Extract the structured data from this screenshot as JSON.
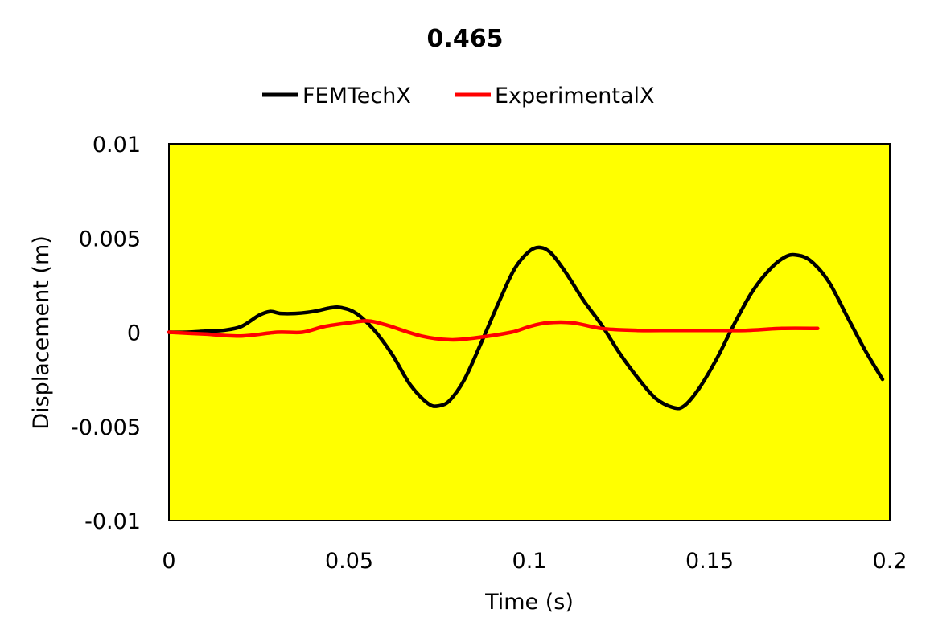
{
  "chart_data": {
    "type": "line",
    "title": "0.465",
    "xlabel": "Time (s)",
    "ylabel": "Displacement (m)",
    "xlim": [
      0,
      0.2
    ],
    "ylim": [
      -0.01,
      0.01
    ],
    "x_ticks": [
      "0",
      "0.05",
      "0.1",
      "0.15",
      "0.2"
    ],
    "y_ticks": [
      "0.01",
      "0.005",
      "0",
      "-0.005",
      "-0.01"
    ],
    "grid": false,
    "legend_position": "top",
    "plot_background": "#ffff00",
    "series": [
      {
        "name": "FEMTechX",
        "color": "#000000",
        "points": [
          [
            0,
            0
          ],
          [
            0.005,
            0
          ],
          [
            0.01,
            5e-05
          ],
          [
            0.015,
            0.0001
          ],
          [
            0.02,
            0.0003
          ],
          [
            0.025,
            0.0009
          ],
          [
            0.028,
            0.0011
          ],
          [
            0.031,
            0.001
          ],
          [
            0.035,
            0.001
          ],
          [
            0.04,
            0.0011
          ],
          [
            0.045,
            0.0013
          ],
          [
            0.048,
            0.0013
          ],
          [
            0.052,
            0.001
          ],
          [
            0.057,
            0.0001
          ],
          [
            0.062,
            -0.0012
          ],
          [
            0.067,
            -0.0028
          ],
          [
            0.072,
            -0.0038
          ],
          [
            0.075,
            -0.0039
          ],
          [
            0.078,
            -0.0036
          ],
          [
            0.082,
            -0.0025
          ],
          [
            0.087,
            -0.0004
          ],
          [
            0.092,
            0.0018
          ],
          [
            0.096,
            0.0034
          ],
          [
            0.1,
            0.0043
          ],
          [
            0.103,
            0.0045
          ],
          [
            0.106,
            0.0042
          ],
          [
            0.11,
            0.0032
          ],
          [
            0.115,
            0.0017
          ],
          [
            0.12,
            0.0004
          ],
          [
            0.125,
            -0.0011
          ],
          [
            0.13,
            -0.0024
          ],
          [
            0.135,
            -0.0035
          ],
          [
            0.14,
            -0.004
          ],
          [
            0.143,
            -0.0039
          ],
          [
            0.147,
            -0.003
          ],
          [
            0.152,
            -0.0014
          ],
          [
            0.157,
            0.0005
          ],
          [
            0.162,
            0.0022
          ],
          [
            0.167,
            0.0034
          ],
          [
            0.171,
            0.004
          ],
          [
            0.174,
            0.0041
          ],
          [
            0.178,
            0.0038
          ],
          [
            0.183,
            0.0027
          ],
          [
            0.188,
            0.0009
          ],
          [
            0.193,
            -0.0009
          ],
          [
            0.198,
            -0.0025
          ]
        ]
      },
      {
        "name": "ExperimentalX",
        "color": "#ff0000",
        "points": [
          [
            0,
            0
          ],
          [
            0.01,
            -0.0001
          ],
          [
            0.02,
            -0.0002
          ],
          [
            0.03,
            0
          ],
          [
            0.037,
            0
          ],
          [
            0.043,
            0.0003
          ],
          [
            0.05,
            0.0005
          ],
          [
            0.055,
            0.0006
          ],
          [
            0.06,
            0.0004
          ],
          [
            0.07,
            -0.0002
          ],
          [
            0.078,
            -0.0004
          ],
          [
            0.085,
            -0.0003
          ],
          [
            0.095,
            0
          ],
          [
            0.1,
            0.0003
          ],
          [
            0.105,
            0.0005
          ],
          [
            0.112,
            0.0005
          ],
          [
            0.12,
            0.0002
          ],
          [
            0.13,
            0.0001
          ],
          [
            0.14,
            0.0001
          ],
          [
            0.15,
            0.0001
          ],
          [
            0.16,
            0.0001
          ],
          [
            0.17,
            0.0002
          ],
          [
            0.18,
            0.0002
          ]
        ]
      }
    ]
  }
}
